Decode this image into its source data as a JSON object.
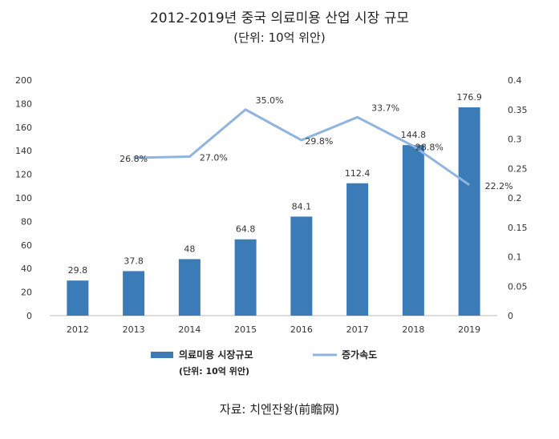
{
  "header": {
    "title": "2012-2019년 중국 의료미용 산업 시장 규모",
    "subtitle": "(단위: 10억 위안)"
  },
  "footer": {
    "source": "자료: 치엔잔왕(前瞻网)"
  },
  "colors": {
    "bar": "#3b7cb8",
    "line": "#8fb4df",
    "axis_text": "#333333",
    "grid": "#dddddd"
  },
  "chart_data": {
    "type": "bar",
    "categories": [
      "2012",
      "2013",
      "2014",
      "2015",
      "2016",
      "2017",
      "2018",
      "2019"
    ],
    "series": [
      {
        "name": "의료미용 시장규모",
        "name_sub": "(단위: 10억 위안)",
        "type": "bar",
        "axis": "left",
        "values": [
          29.8,
          37.8,
          48,
          64.8,
          84.1,
          112.4,
          144.8,
          176.9
        ],
        "labels": [
          "29.8",
          "37.8",
          "48",
          "64.8",
          "84.1",
          "112.4",
          "144.8",
          "176.9"
        ]
      },
      {
        "name": "증가속도",
        "type": "line",
        "axis": "right",
        "values": [
          null,
          0.268,
          0.27,
          0.35,
          0.298,
          0.337,
          0.288,
          0.222
        ],
        "labels": [
          null,
          "26.8%",
          "27.0%",
          "35.0%",
          "29.8%",
          "33.7%",
          "28.8%",
          "22.2%"
        ]
      }
    ],
    "y_left": {
      "lim": [
        0,
        200
      ],
      "ticks": [
        "0",
        "20",
        "40",
        "60",
        "80",
        "100",
        "120",
        "140",
        "160",
        "180",
        "200"
      ]
    },
    "y_right": {
      "lim": [
        0,
        0.4
      ],
      "ticks": [
        "0",
        "0.05",
        "0.1",
        "0.15",
        "0.2",
        "0.25",
        "0.3",
        "0.35",
        "0.4"
      ]
    },
    "grid": false,
    "legend_position": "bottom"
  }
}
